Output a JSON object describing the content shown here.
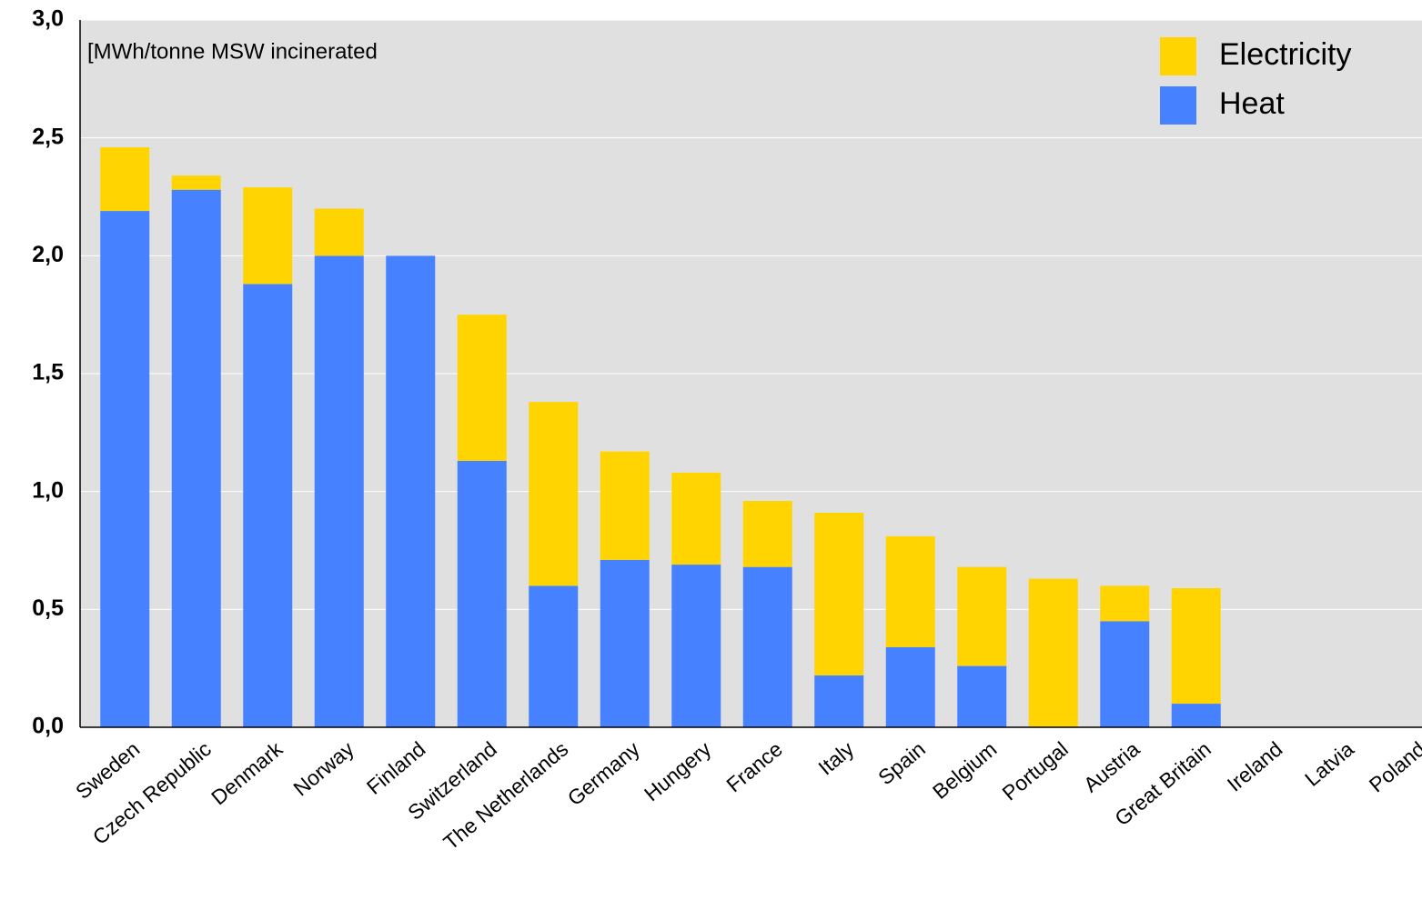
{
  "chart_data": {
    "type": "stacked_bar",
    "annotation": "[MWh/tonne MSW incinerated",
    "categories": [
      "Sweden",
      "Czech Republic",
      "Denmark",
      "Norway",
      "Finland",
      "Switzerland",
      "The Netherlands",
      "Germany",
      "Hungery",
      "France",
      "Italy",
      "Spain",
      "Belgium",
      "Portugal",
      "Austria",
      "Great Britain",
      "Ireland",
      "Latvia",
      "Poland"
    ],
    "series": [
      {
        "name": "Heat",
        "color": "#4682ff",
        "values": [
          2.19,
          2.28,
          1.88,
          2.0,
          2.0,
          1.13,
          0.6,
          0.71,
          0.69,
          0.68,
          0.22,
          0.34,
          0.26,
          0,
          0.45,
          0.1,
          0,
          0,
          0
        ]
      },
      {
        "name": "Electricity",
        "color": "#ffd400",
        "values": [
          0.27,
          0.06,
          0.41,
          0.2,
          0,
          0.62,
          0.78,
          0.46,
          0.39,
          0.28,
          0.69,
          0.47,
          0.42,
          0.63,
          0.15,
          0.49,
          0,
          0,
          0
        ]
      }
    ],
    "ylim": [
      0,
      3
    ],
    "yticks": [
      {
        "value": 0,
        "label": "0,0"
      },
      {
        "value": 0.5,
        "label": "0,5"
      },
      {
        "value": 1,
        "label": "1,0"
      },
      {
        "value": 1.5,
        "label": "1,5"
      },
      {
        "value": 2,
        "label": "2,0"
      },
      {
        "value": 2.5,
        "label": "2,5"
      },
      {
        "value": 3,
        "label": "3,0"
      }
    ],
    "grid": true,
    "legend": "top-right"
  }
}
